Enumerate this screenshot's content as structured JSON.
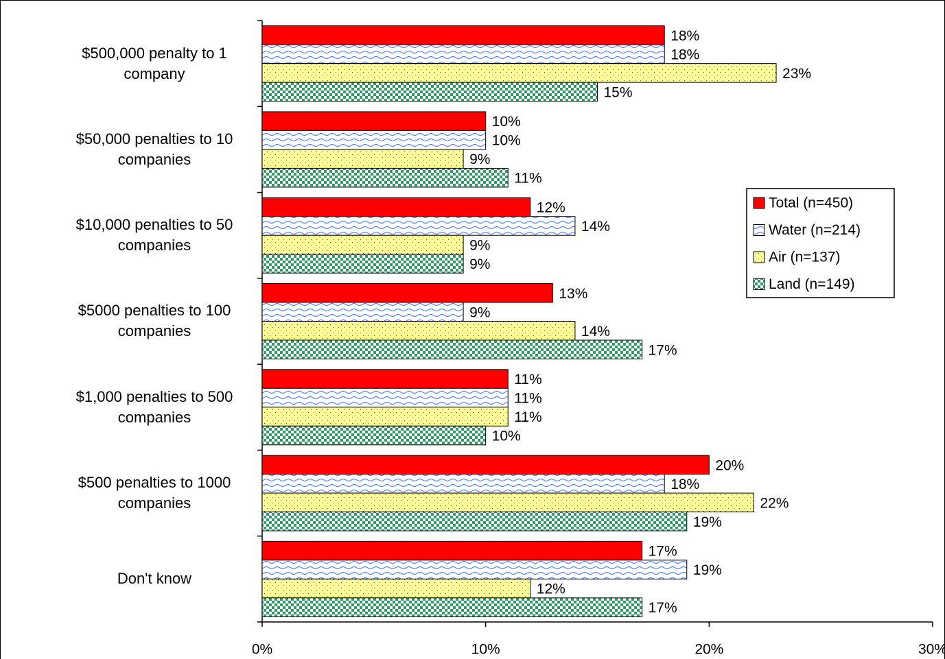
{
  "chart_data": {
    "type": "bar",
    "orientation": "horizontal",
    "categories": [
      "$500,000 penalty to 1 company",
      "$50,000 penalties to 10 companies",
      "$10,000 penalties to 50 companies",
      "$5000 penalties to 100 companies",
      "$1,000 penalties to 500 companies",
      "$500 penalties to 1000 companies",
      "Don't know"
    ],
    "series": [
      {
        "name": "Total (n=450)",
        "color": "#ff0000",
        "pattern": "solid",
        "values": [
          18,
          10,
          12,
          13,
          11,
          20,
          17
        ],
        "value_labels": [
          "18%",
          "10%",
          "12%",
          "13%",
          "11%",
          "20%",
          "17%"
        ]
      },
      {
        "name": "Water (n=214)",
        "color": "#3366ff",
        "pattern": "wave",
        "values": [
          18,
          10,
          14,
          9,
          11,
          18,
          19
        ],
        "value_labels": [
          "18%",
          "10%",
          "14%",
          "9%",
          "11%",
          "18%",
          "19%"
        ]
      },
      {
        "name": "Air (n=137)",
        "color": "#ffff99",
        "pattern": "dots",
        "values": [
          23,
          9,
          9,
          14,
          11,
          22,
          12
        ],
        "value_labels": [
          "23%",
          "9%",
          "9%",
          "14%",
          "11%",
          "22%",
          "12%"
        ]
      },
      {
        "name": "Land (n=149)",
        "color": "#339966",
        "pattern": "checker",
        "values": [
          15,
          11,
          9,
          17,
          10,
          19,
          17
        ],
        "value_labels": [
          "15%",
          "11%",
          "9%",
          "17%",
          "10%",
          "19%",
          "17%"
        ]
      }
    ],
    "xlim": [
      0,
      30
    ],
    "xticks": [
      {
        "value": 0,
        "label": "0%"
      },
      {
        "value": 10,
        "label": "10%"
      },
      {
        "value": 20,
        "label": "20%"
      },
      {
        "value": 30,
        "label": "30%"
      }
    ],
    "legend": "right",
    "grid": false
  }
}
